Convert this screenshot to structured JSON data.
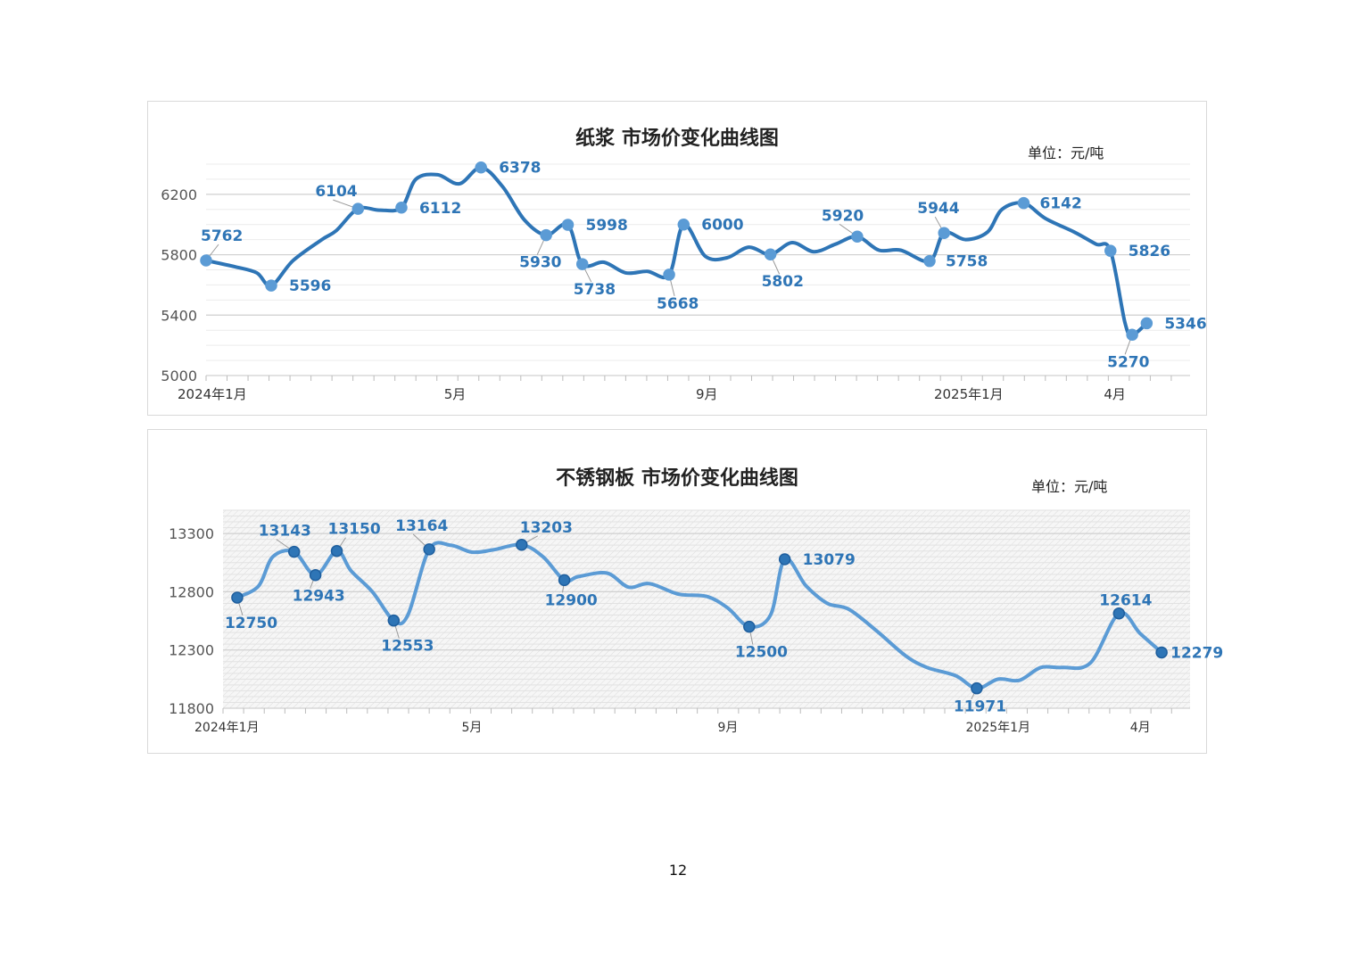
{
  "page_number": "12",
  "chart_data": [
    {
      "type": "line",
      "title": "纸浆 市场价变化曲线图",
      "unit": "单位：元/吨",
      "color": "#2e75b6",
      "marker_color": "#5b9bd5",
      "ylim": [
        5000,
        6400
      ],
      "y_ticks": [
        5000,
        5400,
        5800,
        6200
      ],
      "x_tick_labels": [
        {
          "label": "2024年1月",
          "x": 0
        },
        {
          "label": "5月",
          "x": 17.2
        },
        {
          "label": "9月",
          "x": 34.6
        },
        {
          "label": "2025年1月",
          "x": 52.7
        },
        {
          "label": "4月",
          "x": 62.8
        }
      ],
      "curve": [
        [
          0,
          5762
        ],
        [
          2,
          5720
        ],
        [
          3.5,
          5680
        ],
        [
          4.5,
          5596
        ],
        [
          6,
          5760
        ],
        [
          8,
          5900
        ],
        [
          9,
          5960
        ],
        [
          10.5,
          6104
        ],
        [
          12,
          6095
        ],
        [
          13.5,
          6112
        ],
        [
          14.5,
          6300
        ],
        [
          16,
          6330
        ],
        [
          17.5,
          6270
        ],
        [
          19,
          6378
        ],
        [
          20.5,
          6250
        ],
        [
          22,
          6030
        ],
        [
          23.5,
          5930
        ],
        [
          25,
          5998
        ],
        [
          26,
          5738
        ],
        [
          27.5,
          5750
        ],
        [
          29,
          5680
        ],
        [
          30.5,
          5690
        ],
        [
          32,
          5668
        ],
        [
          33,
          6000
        ],
        [
          34.5,
          5790
        ],
        [
          36,
          5780
        ],
        [
          37.5,
          5850
        ],
        [
          39,
          5802
        ],
        [
          40.5,
          5880
        ],
        [
          42,
          5820
        ],
        [
          43.5,
          5870
        ],
        [
          45,
          5920
        ],
        [
          46.5,
          5830
        ],
        [
          48,
          5830
        ],
        [
          50,
          5758
        ],
        [
          51,
          5944
        ],
        [
          52.5,
          5900
        ],
        [
          54,
          5950
        ],
        [
          55,
          6100
        ],
        [
          56.5,
          6142
        ],
        [
          58,
          6040
        ],
        [
          60,
          5950
        ],
        [
          61.5,
          5870
        ],
        [
          62.5,
          5826
        ],
        [
          63.5,
          5350
        ],
        [
          64,
          5270
        ],
        [
          65,
          5346
        ]
      ],
      "labeled_points": [
        {
          "x": 0,
          "y": 5762,
          "label": "5762"
        },
        {
          "x": 4.5,
          "y": 5596,
          "label": "5596"
        },
        {
          "x": 10.5,
          "y": 6104,
          "label": "6104"
        },
        {
          "x": 13.5,
          "y": 6112,
          "label": "6112"
        },
        {
          "x": 19,
          "y": 6378,
          "label": "6378"
        },
        {
          "x": 23.5,
          "y": 5930,
          "label": "5930"
        },
        {
          "x": 25,
          "y": 5998,
          "label": "5998"
        },
        {
          "x": 26,
          "y": 5738,
          "label": "5738"
        },
        {
          "x": 32,
          "y": 5668,
          "label": "5668"
        },
        {
          "x": 33,
          "y": 6000,
          "label": "6000"
        },
        {
          "x": 39,
          "y": 5802,
          "label": "5802"
        },
        {
          "x": 45,
          "y": 5920,
          "label": "5920"
        },
        {
          "x": 50,
          "y": 5758,
          "label": "5758"
        },
        {
          "x": 51,
          "y": 5944,
          "label": "5944"
        },
        {
          "x": 56.5,
          "y": 6142,
          "label": "6142"
        },
        {
          "x": 62.5,
          "y": 5826,
          "label": "5826"
        },
        {
          "x": 64,
          "y": 5270,
          "label": "5270"
        },
        {
          "x": 65,
          "y": 5346,
          "label": "5346"
        }
      ]
    },
    {
      "type": "line",
      "title": "不锈钢板 市场价变化曲线图",
      "unit": "单位：元/吨",
      "color": "#5b9bd5",
      "marker_color": "#2e75b6",
      "ylim": [
        11800,
        13500
      ],
      "y_ticks": [
        11800,
        12300,
        12800,
        13300
      ],
      "x_tick_labels": [
        {
          "label": "2024年1月",
          "x": 0
        },
        {
          "label": "5月",
          "x": 17.5
        },
        {
          "label": "9月",
          "x": 35.5
        },
        {
          "label": "2025年1月",
          "x": 54.5
        },
        {
          "label": "4月",
          "x": 64.5
        }
      ],
      "curve": [
        [
          1,
          12750
        ],
        [
          2.5,
          12850
        ],
        [
          3.5,
          13100
        ],
        [
          5,
          13143
        ],
        [
          6.5,
          12943
        ],
        [
          8,
          13150
        ],
        [
          9,
          12980
        ],
        [
          10.5,
          12800
        ],
        [
          12,
          12553
        ],
        [
          13,
          12600
        ],
        [
          14.5,
          13164
        ],
        [
          16,
          13200
        ],
        [
          17.5,
          13140
        ],
        [
          19,
          13160
        ],
        [
          21,
          13203
        ],
        [
          22.5,
          13100
        ],
        [
          24,
          12900
        ],
        [
          25,
          12930
        ],
        [
          27,
          12960
        ],
        [
          28.5,
          12840
        ],
        [
          30,
          12870
        ],
        [
          32,
          12780
        ],
        [
          34,
          12760
        ],
        [
          35.5,
          12660
        ],
        [
          37,
          12500
        ],
        [
          38.5,
          12600
        ],
        [
          39.5,
          13079
        ],
        [
          41,
          12850
        ],
        [
          42.5,
          12700
        ],
        [
          44,
          12650
        ],
        [
          46,
          12460
        ],
        [
          48,
          12250
        ],
        [
          49.5,
          12150
        ],
        [
          51.5,
          12080
        ],
        [
          53,
          11971
        ],
        [
          54.5,
          12050
        ],
        [
          56,
          12040
        ],
        [
          57.5,
          12150
        ],
        [
          59,
          12150
        ],
        [
          61,
          12190
        ],
        [
          63,
          12614
        ],
        [
          64.5,
          12440
        ],
        [
          66,
          12279
        ]
      ],
      "labeled_points": [
        {
          "x": 1,
          "y": 12750,
          "label": "12750"
        },
        {
          "x": 5,
          "y": 13143,
          "label": "13143"
        },
        {
          "x": 6.5,
          "y": 12943,
          "label": "12943"
        },
        {
          "x": 8,
          "y": 13150,
          "label": "13150"
        },
        {
          "x": 12,
          "y": 12553,
          "label": "12553"
        },
        {
          "x": 14.5,
          "y": 13164,
          "label": "13164"
        },
        {
          "x": 21,
          "y": 13203,
          "label": "13203"
        },
        {
          "x": 24,
          "y": 12900,
          "label": "12900"
        },
        {
          "x": 37,
          "y": 12500,
          "label": "12500"
        },
        {
          "x": 39.5,
          "y": 13079,
          "label": "13079"
        },
        {
          "x": 53,
          "y": 11971,
          "label": "11971"
        },
        {
          "x": 63,
          "y": 12614,
          "label": "12614"
        },
        {
          "x": 66,
          "y": 12279,
          "label": "12279"
        }
      ]
    }
  ]
}
